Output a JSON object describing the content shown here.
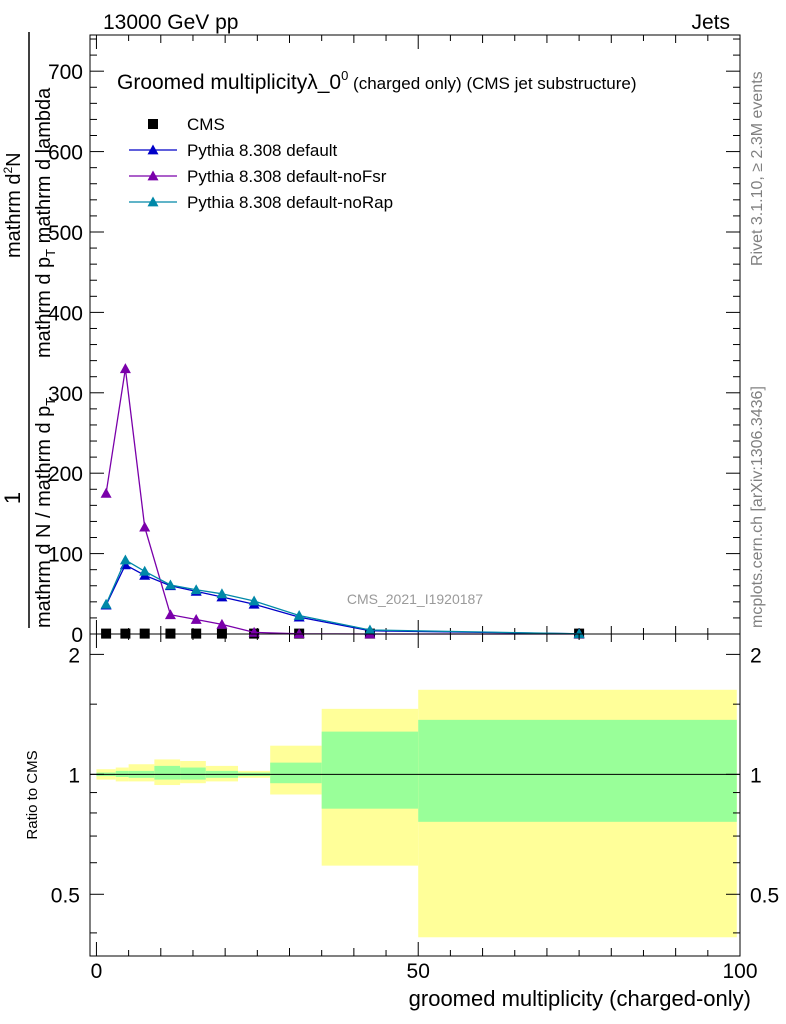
{
  "header": {
    "energy_label": "13000 GeV pp",
    "category_label": "Jets"
  },
  "side_labels": {
    "rivet": "Rivet 3.1.10, ≥ 2.3M events",
    "mcplots": "mcplots.cern.ch [arXiv:1306.3436]"
  },
  "colors": {
    "cms": "#000000",
    "default": "#0000c8",
    "noFsr": "#7a00aa",
    "noRap": "#0088a8",
    "band_outer": "#ffff99",
    "band_inner": "#99ff99"
  },
  "chart_data": [
    {
      "type": "line",
      "panel": "main",
      "title": "Groomed multiplicityλ_0⁰ (charged only) (CMS jet substructure)",
      "title_parts": {
        "main": "Groomed multiplicityλ_0",
        "sup": "0",
        "tail": " (charged only) (CMS jet substructure)"
      },
      "analysis_label": "CMS_2021_I1920187",
      "ylabel": {
        "numerator": "1",
        "denominator": "mathrm d N / mathrm d p",
        "denominator_sub": "T",
        "numerator2": "mathrm d",
        "numerator2_sup": "2",
        "numerator2_tail": "N",
        "denominator2": "mathrm d p",
        "denominator2_sub": "T",
        "denominator2_tail": " mathrm d lambda"
      },
      "xlim": [
        -1,
        100
      ],
      "ylim": [
        0,
        745
      ],
      "yticks": [
        0,
        100,
        200,
        300,
        400,
        500,
        600,
        700
      ],
      "legend": {
        "placement": "top-left",
        "entries": [
          {
            "label": "CMS",
            "marker": "square",
            "color_key": "cms"
          },
          {
            "label": "Pythia 8.308 default",
            "marker": "triangle",
            "color_key": "default"
          },
          {
            "label": "Pythia 8.308 default-noFsr",
            "marker": "triangle",
            "color_key": "noFsr"
          },
          {
            "label": "Pythia 8.308 default-noRap",
            "marker": "triangle",
            "color_key": "noRap"
          }
        ]
      },
      "series": [
        {
          "name": "CMS",
          "color_key": "cms",
          "marker": "square",
          "line": false,
          "x": [
            1.5,
            4.5,
            7.5,
            11.5,
            15.5,
            19.5,
            24.5,
            31.5,
            42.5,
            75
          ],
          "y": [
            0.5,
            0.5,
            0.5,
            0.5,
            0.5,
            0.5,
            0.5,
            0.5,
            0.5,
            0.5
          ]
        },
        {
          "name": "Pythia 8.308 default",
          "color_key": "default",
          "marker": "triangle",
          "line": true,
          "x": [
            1.5,
            4.5,
            7.5,
            11.5,
            15.5,
            19.5,
            24.5,
            31.5,
            42.5,
            75
          ],
          "y": [
            36,
            86,
            73,
            60,
            53,
            46,
            37,
            21,
            4,
            0.3
          ]
        },
        {
          "name": "Pythia 8.308 default-noFsr",
          "color_key": "noFsr",
          "marker": "triangle",
          "line": true,
          "x": [
            1.5,
            4.5,
            7.5,
            11.5,
            15.5,
            19.5,
            24.5,
            31.5,
            42.5,
            75
          ],
          "y": [
            175,
            330,
            133,
            24,
            18,
            12,
            2,
            0.3,
            0,
            0
          ]
        },
        {
          "name": "Pythia 8.308 default-noRap",
          "color_key": "noRap",
          "marker": "triangle",
          "line": true,
          "x": [
            1.5,
            4.5,
            7.5,
            11.5,
            15.5,
            19.5,
            24.5,
            31.5,
            42.5,
            75
          ],
          "y": [
            37,
            92,
            78,
            61,
            55,
            50,
            41,
            23,
            5,
            0.3
          ]
        }
      ]
    },
    {
      "type": "area",
      "panel": "ratio",
      "ylabel": "Ratio to CMS",
      "xlabel": "groomed multiplicity (charged-only)",
      "xlim": [
        -1,
        100
      ],
      "ylim": [
        0.35,
        2.25
      ],
      "xticks": [
        0,
        50,
        100
      ],
      "yticks": [
        0.5,
        1,
        2
      ],
      "reference_line": 1,
      "bins": [
        {
          "x0": 0,
          "x1": 3,
          "outer": [
            0.97,
            1.03
          ],
          "inner": [
            0.99,
            1.01
          ]
        },
        {
          "x0": 3,
          "x1": 5,
          "outer": [
            0.96,
            1.04
          ],
          "inner": [
            0.985,
            1.02
          ]
        },
        {
          "x0": 5,
          "x1": 9,
          "outer": [
            0.96,
            1.06
          ],
          "inner": [
            0.98,
            1.02
          ]
        },
        {
          "x0": 9,
          "x1": 13,
          "outer": [
            0.94,
            1.09
          ],
          "inner": [
            0.97,
            1.05
          ]
        },
        {
          "x0": 13,
          "x1": 17,
          "outer": [
            0.95,
            1.08
          ],
          "inner": [
            0.97,
            1.04
          ]
        },
        {
          "x0": 17,
          "x1": 22,
          "outer": [
            0.96,
            1.05
          ],
          "inner": [
            0.98,
            1.02
          ]
        },
        {
          "x0": 22,
          "x1": 27,
          "outer": [
            0.98,
            1.02
          ],
          "inner": [
            0.99,
            1.01
          ]
        },
        {
          "x0": 27,
          "x1": 35,
          "outer": [
            0.89,
            1.18
          ],
          "inner": [
            0.95,
            1.07
          ]
        },
        {
          "x0": 35,
          "x1": 50,
          "outer": [
            0.59,
            1.46
          ],
          "inner": [
            0.82,
            1.28
          ]
        },
        {
          "x0": 50,
          "x1": 99.5,
          "outer": [
            0.39,
            1.63
          ],
          "inner": [
            0.76,
            1.37
          ]
        }
      ]
    }
  ]
}
